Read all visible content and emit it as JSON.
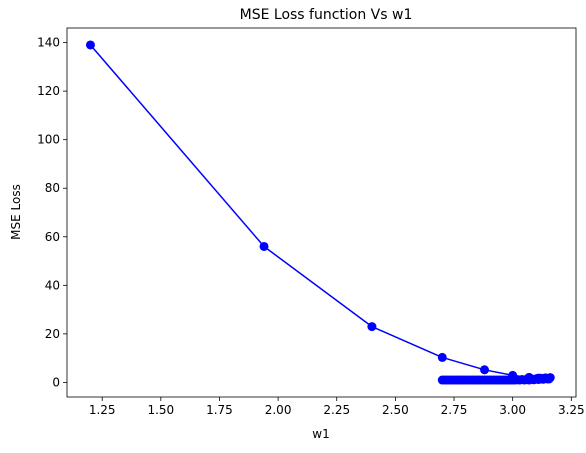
{
  "chart_data": {
    "type": "line",
    "title": "MSE Loss function Vs w1",
    "xlabel": "w1",
    "ylabel": "MSE Loss",
    "xlim": [
      1.1,
      3.27
    ],
    "ylim": [
      -6,
      146
    ],
    "xticks": [
      1.25,
      1.5,
      1.75,
      2.0,
      2.25,
      2.5,
      2.75,
      3.0,
      3.25
    ],
    "xtick_labels": [
      "1.25",
      "1.50",
      "1.75",
      "2.00",
      "2.25",
      "2.50",
      "2.75",
      "3.00",
      "3.25"
    ],
    "yticks": [
      0,
      20,
      40,
      60,
      80,
      100,
      120,
      140
    ],
    "ytick_labels": [
      "0",
      "20",
      "40",
      "60",
      "80",
      "100",
      "120",
      "140"
    ],
    "grid": false,
    "colors": {
      "series": "#0000ff"
    },
    "series": [
      {
        "marker": "circle",
        "x": [
          1.2,
          1.94,
          2.4,
          2.7,
          2.88,
          3.0,
          3.07,
          3.11,
          3.13,
          3.145,
          3.15,
          3.155,
          2.7,
          2.72,
          2.74,
          2.76,
          2.78,
          2.8,
          2.82,
          2.84,
          2.86,
          2.88,
          2.9,
          2.92,
          2.94,
          2.96,
          2.98,
          3.0,
          3.02,
          3.04,
          3.06,
          3.08,
          3.1,
          3.12,
          3.14,
          3.16,
          3.15,
          3.13,
          3.11,
          3.09,
          3.07,
          3.05,
          3.03,
          3.01,
          2.99,
          2.97,
          2.95,
          2.93,
          2.91,
          2.89,
          2.87,
          2.85,
          2.83,
          2.81,
          2.79,
          2.77,
          2.75,
          2.73,
          2.71
        ],
        "y": [
          139,
          56,
          23,
          10.3,
          5.2,
          2.9,
          2.1,
          1.8,
          1.6,
          1.5,
          1.45,
          1.42,
          1.0,
          1.0,
          1.0,
          1.0,
          1.0,
          1.0,
          1.0,
          1.0,
          1.0,
          1.0,
          1.0,
          1.0,
          1.0,
          1.0,
          1.0,
          1.0,
          1.1,
          1.2,
          1.3,
          1.4,
          1.5,
          1.7,
          1.9,
          2.0,
          1.6,
          1.3,
          1.2,
          1.1,
          1.0,
          1.0,
          1.0,
          1.0,
          1.0,
          1.0,
          1.0,
          1.0,
          1.0,
          1.0,
          1.0,
          1.0,
          1.0,
          1.0,
          1.0,
          1.0,
          1.0,
          1.0,
          1.0
        ]
      }
    ]
  }
}
